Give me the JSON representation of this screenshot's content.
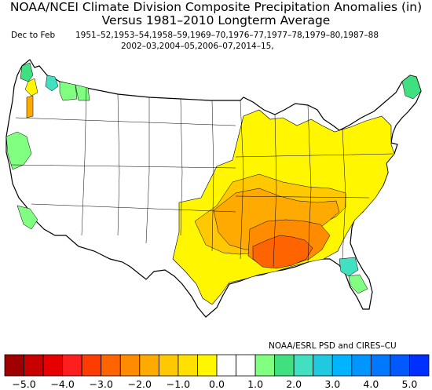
{
  "title_line1": "NOAA/NCEI Climate Division Composite Precipitation Anomalies (in)",
  "title_line2": "Versus 1981–2010 Longterm Average",
  "season_label": "Dec to Feb",
  "years_line1": "1951–52,1953–54,1958–59,1969–70,1976–77,1977–78,1979–80,1987–88",
  "years_line2": "2002–03,2004–05,2006–07,2014–15,",
  "credit": "NOAA/ESRL PSD and CIRES–CU",
  "colorbar": {
    "colors": [
      "#a10000",
      "#c80000",
      "#e60000",
      "#ff1e1e",
      "#ff3c00",
      "#ff6400",
      "#ff8c00",
      "#ffaa00",
      "#ffc800",
      "#ffe000",
      "#fff600",
      "#ffffff",
      "#ffffff",
      "#80ff80",
      "#40e080",
      "#40e0c0",
      "#20c8e0",
      "#00b4ff",
      "#0096ff",
      "#0078ff",
      "#005aff",
      "#0030ff"
    ],
    "ticks": [
      "−5.0",
      "−4.0",
      "−3.0",
      "−2.0",
      "−1.0",
      "0.0",
      "1.0",
      "2.0",
      "3.0",
      "4.0",
      "5.0"
    ]
  },
  "map_colors": {
    "land": "#ffffff",
    "border": "#000000",
    "yellow": "#fff600",
    "light_orange": "#ffc800",
    "orange": "#ffaa00",
    "dark_orange": "#ff8c00",
    "red_orange": "#ff6400",
    "light_green": "#80ff80",
    "green": "#40e080",
    "teal": "#40e0c0"
  }
}
